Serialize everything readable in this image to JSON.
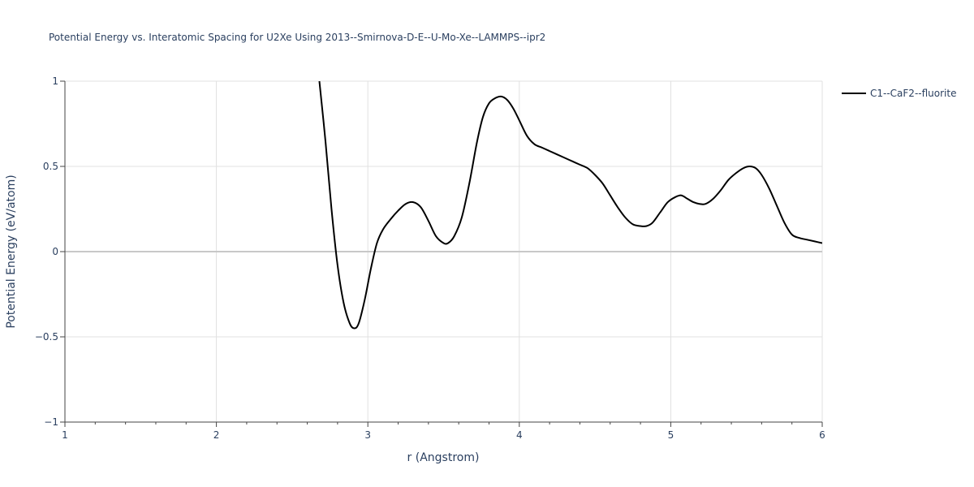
{
  "chart_data": {
    "type": "line",
    "title": "Potential Energy vs. Interatomic Spacing for U2Xe Using 2013--Smirnova-D-E--U-Mo-Xe--LAMMPS--ipr2",
    "xlabel": "r (Angstrom)",
    "ylabel": "Potential Energy (eV/atom)",
    "xlim": [
      1,
      6
    ],
    "ylim": [
      -1,
      1
    ],
    "xticks": [
      1,
      2,
      3,
      4,
      5,
      6
    ],
    "xtick_labels": [
      "1",
      "2",
      "3",
      "4",
      "5",
      "6"
    ],
    "yticks": [
      -1,
      -0.5,
      0,
      0.5,
      1
    ],
    "ytick_labels": [
      "−1",
      "−0.5",
      "0",
      "0.5",
      "1"
    ],
    "grid": true,
    "legend_position": "top-right",
    "series": [
      {
        "name": "C1--CaF2--fluorite",
        "color": "#000000",
        "x": [
          2.68,
          2.72,
          2.76,
          2.8,
          2.84,
          2.88,
          2.91,
          2.94,
          2.98,
          3.02,
          3.06,
          3.1,
          3.15,
          3.2,
          3.25,
          3.3,
          3.35,
          3.4,
          3.45,
          3.5,
          3.53,
          3.57,
          3.62,
          3.67,
          3.72,
          3.76,
          3.8,
          3.84,
          3.88,
          3.92,
          3.96,
          4.0,
          4.05,
          4.1,
          4.15,
          4.2,
          4.25,
          4.3,
          4.35,
          4.4,
          4.45,
          4.5,
          4.55,
          4.6,
          4.65,
          4.7,
          4.75,
          4.8,
          4.84,
          4.88,
          4.93,
          4.98,
          5.03,
          5.07,
          5.11,
          5.15,
          5.19,
          5.23,
          5.28,
          5.33,
          5.38,
          5.43,
          5.48,
          5.52,
          5.56,
          5.6,
          5.65,
          5.7,
          5.75,
          5.8,
          5.85,
          5.9,
          5.95,
          6.0
        ],
        "y": [
          1.0,
          0.65,
          0.25,
          -0.08,
          -0.3,
          -0.42,
          -0.45,
          -0.42,
          -0.28,
          -0.1,
          0.05,
          0.13,
          0.19,
          0.24,
          0.28,
          0.29,
          0.26,
          0.18,
          0.09,
          0.05,
          0.05,
          0.09,
          0.2,
          0.4,
          0.64,
          0.79,
          0.87,
          0.9,
          0.91,
          0.89,
          0.84,
          0.77,
          0.68,
          0.63,
          0.61,
          0.59,
          0.57,
          0.55,
          0.53,
          0.51,
          0.49,
          0.45,
          0.4,
          0.33,
          0.26,
          0.2,
          0.16,
          0.15,
          0.15,
          0.17,
          0.23,
          0.29,
          0.32,
          0.33,
          0.31,
          0.29,
          0.28,
          0.28,
          0.31,
          0.36,
          0.42,
          0.46,
          0.49,
          0.5,
          0.49,
          0.45,
          0.37,
          0.27,
          0.17,
          0.1,
          0.08,
          0.07,
          0.06,
          0.05
        ]
      }
    ]
  }
}
